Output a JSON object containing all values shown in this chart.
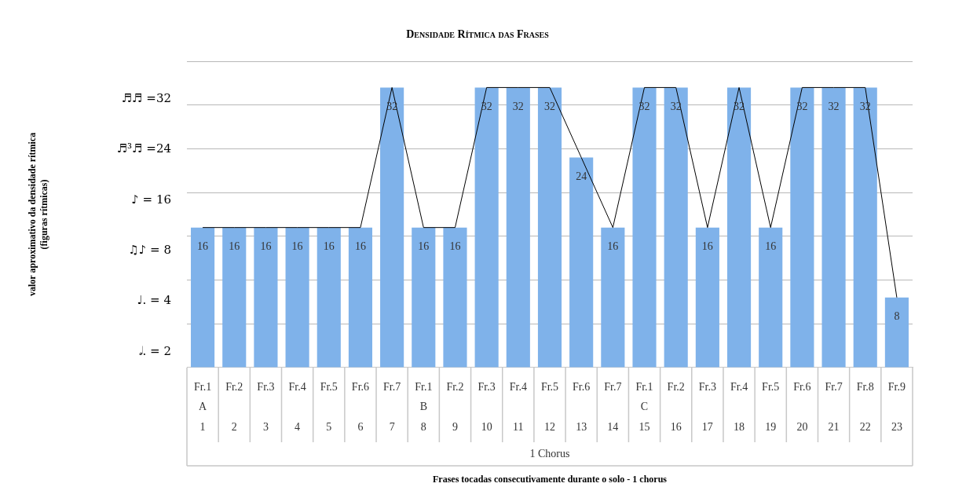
{
  "chart_data": {
    "type": "bar",
    "title": "Densidade Rítmica das Frases",
    "xlabel": "Frases tocadas consecutivamente durante o solo - 1 chorus",
    "categories": [
      "Fr.1\nA\n1",
      "Fr.2\n\n2",
      "Fr.3\n\n3",
      "Fr.4\n\n4",
      "Fr.5\n\n5",
      "Fr.6\n\n6",
      "Fr.7\n\n7",
      "Fr.1\nB\n8",
      "Fr.2\n\n9",
      "Fr.3\n\n10",
      "Fr.4\n\n11",
      "Fr.5\n\n12",
      "Fr.6\n\n13",
      "Fr.7\n\n14",
      "Fr.1\nC\n15",
      "Fr.2\n\n16",
      "Fr.3\n\n17",
      "Fr.4\n\n18",
      "Fr.5\n\n19",
      "Fr.6\n\n20",
      "Fr.7\n\n21",
      "Fr.8\n\n22",
      "Fr.9\n\n23"
    ],
    "series": [
      {
        "color": "#7fb2ea",
        "values": [
          16,
          16,
          16,
          16,
          16,
          16,
          32,
          16,
          16,
          32,
          32,
          32,
          24,
          16,
          32,
          32,
          16,
          32,
          16,
          32,
          32,
          32,
          8
        ],
        "value_labels": [
          "16",
          "16",
          "16",
          "16",
          "16",
          "16",
          "32",
          "16",
          "16",
          "32",
          "32",
          "32",
          "24",
          "16",
          "32",
          "32",
          "16",
          "32",
          "16",
          "32",
          "32",
          "32",
          "8"
        ]
      },
      {
        "type": "line",
        "color": "#000000",
        "values": [
          16,
          16,
          16,
          16,
          16,
          16,
          32,
          16,
          16,
          32,
          32,
          32,
          24,
          16,
          32,
          32,
          16,
          32,
          16,
          32,
          32,
          32,
          8
        ]
      }
    ],
    "marker": "none",
    "grid": "y",
    "legend": false,
    "ylim": [
      0,
      35
    ],
    "yticks": [
      {
        "value": 0,
        "label": null
      },
      {
        "value": 5,
        "label": null
      },
      {
        "value": 10,
        "label": null
      },
      {
        "value": 15,
        "label": null
      },
      {
        "value": 20,
        "label": null
      },
      {
        "value": 25,
        "label": null
      },
      {
        "value": 30,
        "label": null
      },
      {
        "value": 35,
        "label": null
      }
    ],
    "annotations": [
      "1 Chorus",
      "♬♬ =32",
      "♬³♬ =24",
      "♪ = 16",
      "♫♪ = 8",
      "♩. = 4",
      "𝅗𝅥. = 2",
      "valor aproximativo da densidade rítmica\n(figuras rítmicas)"
    ]
  }
}
